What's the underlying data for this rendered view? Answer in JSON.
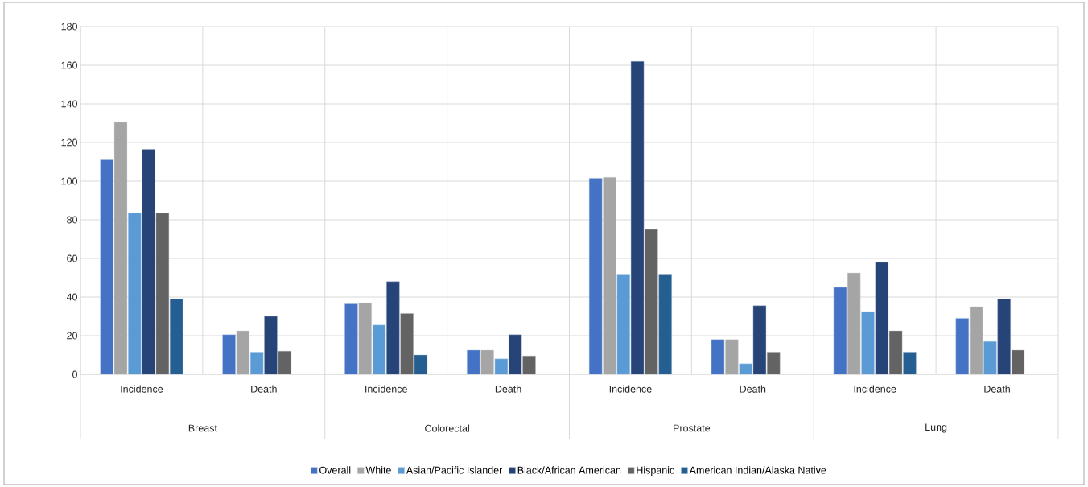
{
  "chart_data": {
    "type": "bar",
    "categories": [
      "Incidence",
      "Death",
      "Incidence",
      "Death",
      "Incidence",
      "Death",
      "Incidence",
      "Death"
    ],
    "annotations": [
      "Breast",
      "Colorectal",
      "Prostate",
      "Lung"
    ],
    "series": [
      {
        "name": "Overall",
        "color": "#4472c4",
        "values": [
          111,
          20.5,
          36.5,
          12.5,
          101.5,
          18,
          45,
          29
        ]
      },
      {
        "name": "White",
        "color": "#a5a5a5",
        "values": [
          130.5,
          22.5,
          37,
          12.5,
          102,
          18,
          52.5,
          35
        ]
      },
      {
        "name": "Asian/Pacific Islander",
        "color": "#5b9bd5",
        "values": [
          83.5,
          11.5,
          25.5,
          8,
          51.5,
          5.5,
          32.5,
          17
        ]
      },
      {
        "name": "Black/African American",
        "color": "#264478",
        "values": [
          116.5,
          30,
          48,
          20.5,
          162,
          35.5,
          58,
          39
        ]
      },
      {
        "name": "Hispanic",
        "color": "#636363",
        "values": [
          83.5,
          12,
          31.5,
          9.5,
          75,
          11.5,
          22.5,
          12.5
        ]
      },
      {
        "name": "American Indian/Alaska Native",
        "color": "#255e91",
        "values": [
          39,
          null,
          10,
          null,
          51.5,
          null,
          11.5,
          null
        ]
      }
    ],
    "ylim": [
      0,
      180
    ],
    "yticks": [
      0,
      20,
      40,
      60,
      80,
      100,
      120,
      140,
      160,
      180
    ],
    "grid": "y",
    "legend": "bottom"
  }
}
